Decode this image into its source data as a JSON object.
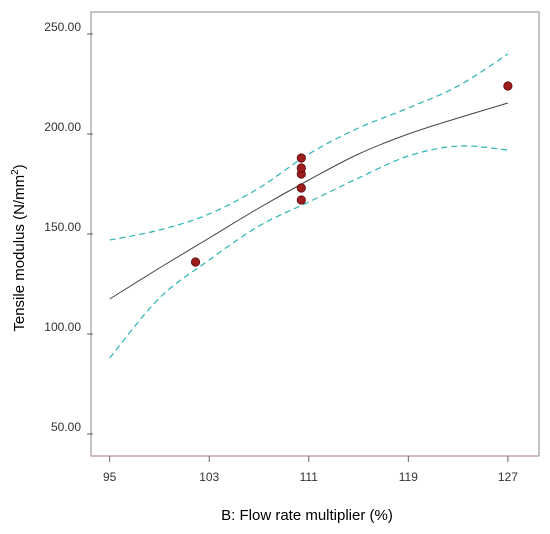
{
  "chart_data": {
    "type": "scatter",
    "title": "",
    "xlabel": "B: Flow rate multiplier (%)",
    "ylabel_main": "Tensile modulus (N/mm",
    "ylabel_sup": "2",
    "ylabel_end": ")",
    "xlim": [
      93.5,
      129.5
    ],
    "ylim": [
      39,
      261
    ],
    "x_ticks": [
      95,
      103,
      111,
      119,
      127
    ],
    "x_tick_labels": [
      "95",
      "103",
      "111",
      "119",
      "127"
    ],
    "y_ticks": [
      50,
      100,
      150,
      200,
      250
    ],
    "y_tick_labels": [
      "50.00",
      "100.00",
      "150.00",
      "200.00",
      "250.00"
    ],
    "grid": false,
    "points": [
      {
        "x": 101.9,
        "y": 136
      },
      {
        "x": 110.4,
        "y": 167
      },
      {
        "x": 110.4,
        "y": 173
      },
      {
        "x": 110.4,
        "y": 180
      },
      {
        "x": 110.4,
        "y": 183
      },
      {
        "x": 110.4,
        "y": 188
      },
      {
        "x": 127,
        "y": 224
      }
    ],
    "series": [
      {
        "role": "fit",
        "style": "solid",
        "color": "#444444",
        "x": [
          95,
          99,
          103,
          107,
          111,
          115,
          119,
          123,
          127
        ],
        "y": [
          117.5,
          133,
          148,
          163,
          177,
          190,
          200,
          208,
          215.5
        ]
      },
      {
        "role": "upper-ci",
        "style": "dashed",
        "color": "#2ab5b5",
        "x": [
          95,
          99,
          103,
          107,
          111,
          115,
          119,
          123,
          127
        ],
        "y": [
          147,
          152,
          160,
          173,
          190,
          203,
          213,
          224,
          240
        ]
      },
      {
        "role": "lower-ci",
        "style": "dashed",
        "color": "#2ab5b5",
        "x": [
          95,
          99,
          103,
          107,
          111,
          115,
          119,
          123,
          127
        ],
        "y": [
          88,
          118,
          137,
          154,
          166,
          178,
          189,
          194,
          192
        ]
      }
    ],
    "point_color": "#9e1c1c",
    "point_edge_color": "#5a0e0e",
    "plot_border_color": "#888888",
    "x_axis_color": "#c9a3a3"
  }
}
